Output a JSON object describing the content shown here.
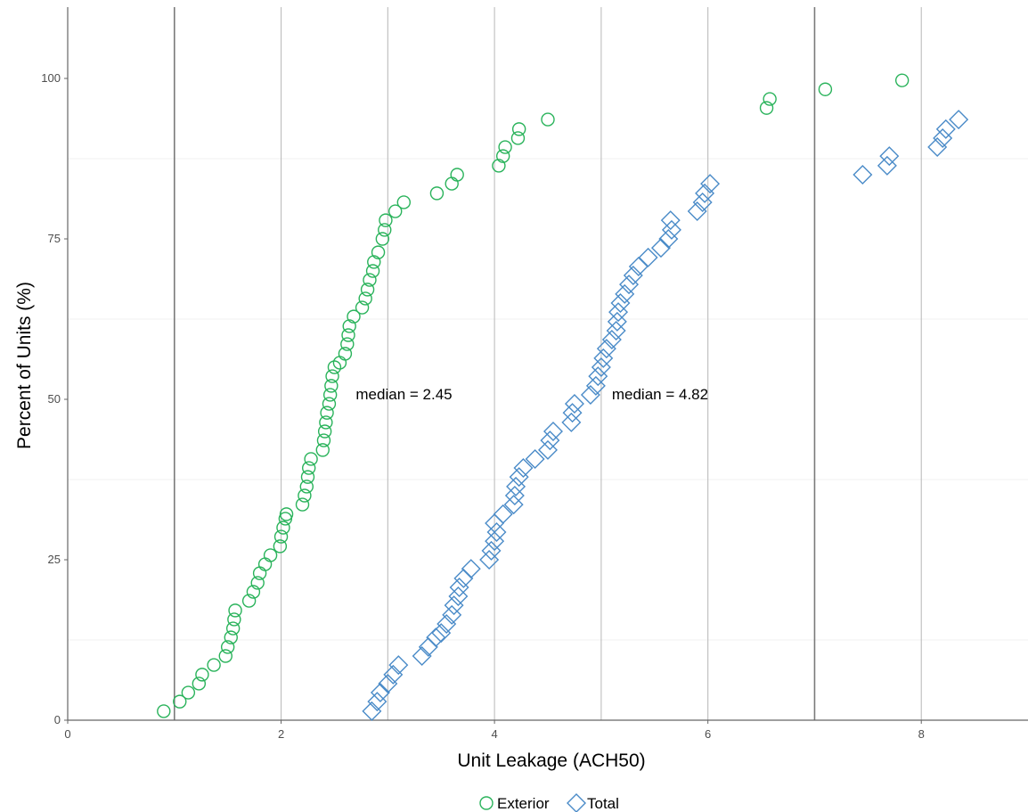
{
  "chart_data": {
    "type": "scatter",
    "xlabel": "Unit Leakage (ACH50)",
    "ylabel": "Percent of Units (%)",
    "xlim": [
      0,
      9
    ],
    "ylim": [
      0,
      100
    ],
    "x_ticks": [
      0,
      2,
      4,
      6,
      8
    ],
    "y_ticks": [
      0,
      25,
      50,
      75,
      100
    ],
    "grid": true,
    "legend_position": "bottom",
    "annotations": [
      {
        "text": "median = 2.45",
        "x": 2.7,
        "y": 47.5
      },
      {
        "text": "median = 4.82",
        "x": 5.1,
        "y": 47.5
      }
    ],
    "series": [
      {
        "name": "Exterior",
        "marker": "circle",
        "color": "#2ab35b",
        "points": [
          [
            0.9,
            1.4
          ],
          [
            1.05,
            2.9
          ],
          [
            1.13,
            4.3
          ],
          [
            1.23,
            5.7
          ],
          [
            1.26,
            7.1
          ],
          [
            1.37,
            8.6
          ],
          [
            1.48,
            10.0
          ],
          [
            1.5,
            11.4
          ],
          [
            1.53,
            12.9
          ],
          [
            1.55,
            14.3
          ],
          [
            1.56,
            15.7
          ],
          [
            1.57,
            17.1
          ],
          [
            1.7,
            18.6
          ],
          [
            1.74,
            20.0
          ],
          [
            1.78,
            21.4
          ],
          [
            1.8,
            22.9
          ],
          [
            1.85,
            24.3
          ],
          [
            1.9,
            25.7
          ],
          [
            1.99,
            27.1
          ],
          [
            2.0,
            28.6
          ],
          [
            2.02,
            30.0
          ],
          [
            2.04,
            31.4
          ],
          [
            2.05,
            32.1
          ],
          [
            2.2,
            33.6
          ],
          [
            2.22,
            35.0
          ],
          [
            2.24,
            36.4
          ],
          [
            2.25,
            37.9
          ],
          [
            2.26,
            39.3
          ],
          [
            2.28,
            40.7
          ],
          [
            2.39,
            42.1
          ],
          [
            2.4,
            43.6
          ],
          [
            2.41,
            45.0
          ],
          [
            2.42,
            46.4
          ],
          [
            2.43,
            47.9
          ],
          [
            2.45,
            49.3
          ],
          [
            2.46,
            50.7
          ],
          [
            2.47,
            52.1
          ],
          [
            2.48,
            53.6
          ],
          [
            2.5,
            55.0
          ],
          [
            2.55,
            55.7
          ],
          [
            2.6,
            57.1
          ],
          [
            2.62,
            58.6
          ],
          [
            2.63,
            60.0
          ],
          [
            2.64,
            61.4
          ],
          [
            2.68,
            62.9
          ],
          [
            2.76,
            64.3
          ],
          [
            2.79,
            65.7
          ],
          [
            2.81,
            67.1
          ],
          [
            2.83,
            68.6
          ],
          [
            2.86,
            70.0
          ],
          [
            2.87,
            71.4
          ],
          [
            2.91,
            72.9
          ],
          [
            2.95,
            75.0
          ],
          [
            2.97,
            76.4
          ],
          [
            2.98,
            77.9
          ],
          [
            3.07,
            79.3
          ],
          [
            3.15,
            80.7
          ],
          [
            3.46,
            82.1
          ],
          [
            3.6,
            83.6
          ],
          [
            3.65,
            85.0
          ],
          [
            4.04,
            86.4
          ],
          [
            4.08,
            87.9
          ],
          [
            4.1,
            89.3
          ],
          [
            4.22,
            90.7
          ],
          [
            4.23,
            92.1
          ],
          [
            4.5,
            93.6
          ],
          [
            6.55,
            95.4
          ],
          [
            6.58,
            96.8
          ],
          [
            7.1,
            98.3
          ],
          [
            7.82,
            99.7
          ]
        ]
      },
      {
        "name": "Total",
        "marker": "diamond",
        "color": "#4a8bc8",
        "points": [
          [
            2.85,
            1.4
          ],
          [
            2.9,
            2.9
          ],
          [
            2.93,
            4.3
          ],
          [
            3.0,
            5.7
          ],
          [
            3.05,
            7.1
          ],
          [
            3.1,
            8.6
          ],
          [
            3.32,
            10.0
          ],
          [
            3.38,
            11.4
          ],
          [
            3.45,
            12.9
          ],
          [
            3.5,
            13.6
          ],
          [
            3.55,
            15.0
          ],
          [
            3.6,
            16.4
          ],
          [
            3.62,
            17.9
          ],
          [
            3.66,
            19.3
          ],
          [
            3.67,
            20.7
          ],
          [
            3.71,
            22.1
          ],
          [
            3.78,
            23.6
          ],
          [
            3.95,
            25.0
          ],
          [
            3.97,
            26.4
          ],
          [
            4.0,
            27.9
          ],
          [
            4.02,
            29.3
          ],
          [
            4.0,
            30.7
          ],
          [
            4.08,
            32.1
          ],
          [
            4.18,
            33.6
          ],
          [
            4.19,
            35.0
          ],
          [
            4.2,
            36.4
          ],
          [
            4.23,
            37.9
          ],
          [
            4.27,
            39.3
          ],
          [
            4.38,
            40.7
          ],
          [
            4.5,
            42.1
          ],
          [
            4.52,
            43.6
          ],
          [
            4.55,
            45.0
          ],
          [
            4.72,
            46.4
          ],
          [
            4.73,
            47.9
          ],
          [
            4.75,
            49.3
          ],
          [
            4.9,
            50.7
          ],
          [
            4.95,
            52.1
          ],
          [
            4.97,
            53.6
          ],
          [
            5.0,
            55.0
          ],
          [
            5.02,
            56.4
          ],
          [
            5.05,
            57.9
          ],
          [
            5.1,
            59.3
          ],
          [
            5.14,
            60.7
          ],
          [
            5.15,
            62.1
          ],
          [
            5.16,
            63.6
          ],
          [
            5.18,
            65.0
          ],
          [
            5.22,
            66.4
          ],
          [
            5.26,
            67.9
          ],
          [
            5.3,
            69.3
          ],
          [
            5.35,
            70.7
          ],
          [
            5.44,
            72.1
          ],
          [
            5.56,
            73.6
          ],
          [
            5.63,
            75.0
          ],
          [
            5.66,
            76.4
          ],
          [
            5.65,
            77.9
          ],
          [
            5.9,
            79.3
          ],
          [
            5.95,
            80.7
          ],
          [
            5.97,
            82.1
          ],
          [
            6.02,
            83.6
          ],
          [
            7.45,
            85.0
          ],
          [
            7.68,
            86.4
          ],
          [
            7.7,
            87.9
          ],
          [
            8.15,
            89.3
          ],
          [
            8.2,
            90.7
          ],
          [
            8.23,
            92.1
          ],
          [
            8.35,
            93.6
          ]
        ]
      }
    ]
  }
}
